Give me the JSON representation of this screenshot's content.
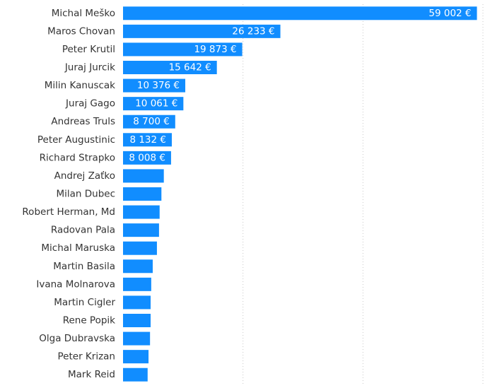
{
  "chart_data": {
    "type": "bar",
    "orientation": "horizontal",
    "categories": [
      "Michal Meško",
      "Maros Chovan",
      "Peter Krutil",
      "Juraj Jurcik",
      "Milin Kanuscak",
      "Juraj Gago",
      "Andreas Truls",
      "Peter Augustinic",
      "Richard Strapko",
      "Andrej Zaťko",
      "Milan Dubec",
      "Robert Herman, Md",
      "Radovan Pala",
      "Michal Maruska",
      "Martin Basila",
      "Ivana Molnarova",
      "Martin Cigler",
      "Rene Popik",
      "Olga Dubravska",
      "Peter Krizan",
      "Mark Reid"
    ],
    "values": [
      59002,
      26233,
      19873,
      15642,
      10376,
      10061,
      8700,
      8132,
      8008,
      6800,
      6400,
      6100,
      6000,
      5650,
      4950,
      4700,
      4600,
      4600,
      4500,
      4250,
      4100
    ],
    "value_labels": [
      "59 002 €",
      "26 233 €",
      "19 873 €",
      "15 642 €",
      "10 376 €",
      "10 061 €",
      "8 700 €",
      "8 132 €",
      "8 008 €",
      null,
      null,
      null,
      null,
      null,
      null,
      null,
      null,
      null,
      null,
      null,
      null
    ],
    "color": "#118dff",
    "xlim": [
      0,
      60000
    ],
    "xticks": [
      20000,
      40000,
      60000
    ],
    "grid": true
  }
}
